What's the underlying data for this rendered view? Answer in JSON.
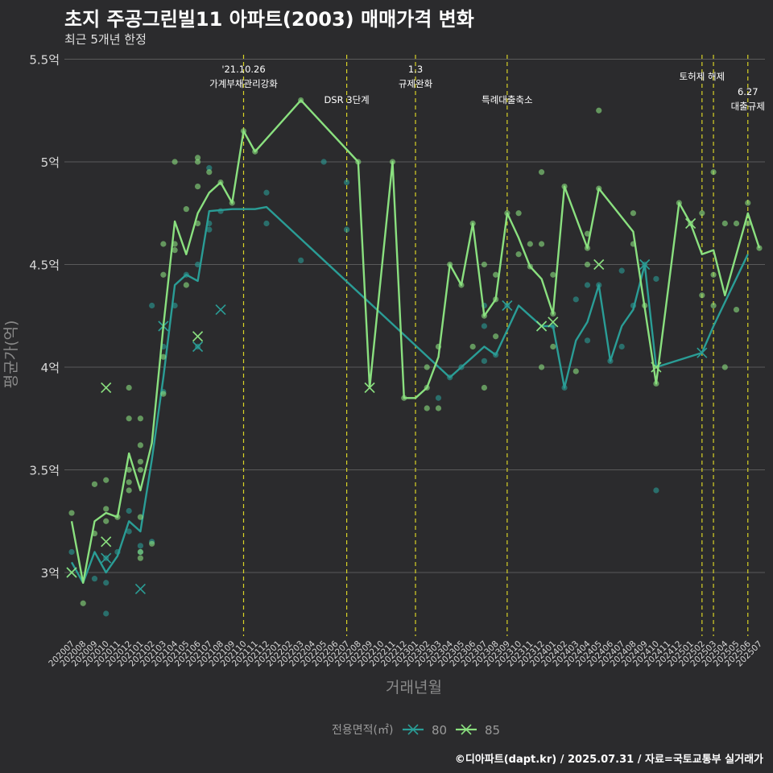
{
  "title": "초지 주공그린빌11 아파트(2003) 매매가격 변화",
  "subtitle": "최근 5개년 한정",
  "caption": "©디아파트(dapt.kr) / 2025.07.31 / 자료=국토교통부 실거래가",
  "colors": {
    "background": "#2b2b2d",
    "grid": "#5a5a5a",
    "series_80": "#2a9d96",
    "series_85": "#8ae07f",
    "event_line": "#d9d326"
  },
  "chart_data": {
    "type": "line",
    "xlabel": "거래년월",
    "ylabel": "평균가(억)",
    "ylim": [
      2.65,
      5.55
    ],
    "yticks": [
      3,
      3.5,
      4,
      4.5,
      5,
      5.5
    ],
    "ytick_labels": [
      "3억",
      "3.5억",
      "4억",
      "4.5억",
      "5억",
      "5.5억"
    ],
    "categories": [
      "202007",
      "202008",
      "202009",
      "202010",
      "202011",
      "202012",
      "202101",
      "202102",
      "202103",
      "202104",
      "202105",
      "202106",
      "202107",
      "202108",
      "202109",
      "202110",
      "202111",
      "202112",
      "202201",
      "202202",
      "202203",
      "202204",
      "202205",
      "202206",
      "202207",
      "202208",
      "202209",
      "202210",
      "202211",
      "202212",
      "202301",
      "202302",
      "202303",
      "202304",
      "202305",
      "202306",
      "202307",
      "202308",
      "202309",
      "202310",
      "202311",
      "202312",
      "202401",
      "202402",
      "202403",
      "202404",
      "202405",
      "202406",
      "202407",
      "202408",
      "202409",
      "202410",
      "202411",
      "202412",
      "202501",
      "202502",
      "202503",
      "202504",
      "202505",
      "202506",
      "202507"
    ],
    "legend": {
      "title": "전용면적(㎡)",
      "position": "bottom",
      "entries": [
        "80",
        "85"
      ]
    },
    "series": [
      {
        "name": "80",
        "color": "#2a9d96",
        "line": [
          [
            "202007",
            3.05
          ],
          [
            "202008",
            2.95
          ],
          [
            "202009",
            3.1
          ],
          [
            "202010",
            3.0
          ],
          [
            "202011",
            3.08
          ],
          [
            "202012",
            3.25
          ],
          [
            "202101",
            3.2
          ],
          [
            "202102",
            3.55
          ],
          [
            "202103",
            3.95
          ],
          [
            "202104",
            4.4
          ],
          [
            "202105",
            4.45
          ],
          [
            "202106",
            4.42
          ],
          [
            "202107",
            4.76
          ],
          [
            "202108",
            4.765
          ],
          [
            "202109",
            4.77
          ],
          [
            "202110",
            4.77
          ],
          [
            "202111",
            4.77
          ],
          [
            "202112",
            4.78
          ],
          [
            "202304",
            3.95
          ],
          [
            "202305",
            4.0
          ],
          [
            "202306",
            4.05
          ],
          [
            "202307",
            4.1
          ],
          [
            "202308",
            4.06
          ],
          [
            "202309",
            4.18
          ],
          [
            "202310",
            4.3
          ],
          [
            "202311",
            4.25
          ],
          [
            "202312",
            4.2
          ],
          [
            "202401",
            4.2
          ],
          [
            "202402",
            3.9
          ],
          [
            "202403",
            4.13
          ],
          [
            "202404",
            4.22
          ],
          [
            "202405",
            4.4
          ],
          [
            "202406",
            4.03
          ],
          [
            "202407",
            4.2
          ],
          [
            "202408",
            4.28
          ],
          [
            "202409",
            4.5
          ],
          [
            "202410",
            4.0
          ],
          [
            "202502",
            4.07
          ],
          [
            "202503",
            4.2
          ],
          [
            "202506",
            4.55
          ]
        ],
        "points": [
          [
            "202007",
            3.1
          ],
          [
            "202009",
            2.97
          ],
          [
            "202010",
            2.8
          ],
          [
            "202010",
            3.07
          ],
          [
            "202010",
            2.95
          ],
          [
            "202011",
            3.1
          ],
          [
            "202012",
            3.2
          ],
          [
            "202012",
            3.3
          ],
          [
            "202101",
            3.1
          ],
          [
            "202101",
            3.13
          ],
          [
            "202102",
            3.15
          ],
          [
            "202102",
            4.3
          ],
          [
            "202103",
            3.88
          ],
          [
            "202103",
            4.1
          ],
          [
            "202104",
            4.3
          ],
          [
            "202105",
            4.45
          ],
          [
            "202106",
            4.1
          ],
          [
            "202106",
            4.5
          ],
          [
            "202107",
            4.97
          ],
          [
            "202107",
            4.67
          ],
          [
            "202107",
            4.7
          ],
          [
            "202108",
            4.76
          ],
          [
            "202112",
            4.85
          ],
          [
            "202112",
            4.7
          ],
          [
            "202203",
            4.52
          ],
          [
            "202205",
            5.0
          ],
          [
            "202207",
            4.9
          ],
          [
            "202207",
            4.67
          ],
          [
            "202303",
            3.85
          ],
          [
            "202304",
            3.95
          ],
          [
            "202305",
            4.0
          ],
          [
            "202307",
            4.3
          ],
          [
            "202307",
            4.2
          ],
          [
            "202307",
            4.03
          ],
          [
            "202308",
            4.06
          ],
          [
            "202309",
            4.3
          ],
          [
            "202401",
            4.2
          ],
          [
            "202402",
            3.9
          ],
          [
            "202403",
            4.33
          ],
          [
            "202404",
            4.4
          ],
          [
            "202404",
            4.13
          ],
          [
            "202405",
            4.4
          ],
          [
            "202406",
            4.03
          ],
          [
            "202407",
            4.47
          ],
          [
            "202407",
            4.1
          ],
          [
            "202408",
            4.3
          ],
          [
            "202409",
            4.5
          ],
          [
            "202410",
            3.4
          ],
          [
            "202410",
            4.43
          ]
        ],
        "cross_points": [
          [
            "202007",
            3.0
          ],
          [
            "202010",
            3.07
          ],
          [
            "202101",
            2.92
          ],
          [
            "202103",
            4.2
          ],
          [
            "202106",
            4.1
          ],
          [
            "202108",
            4.28
          ],
          [
            "202309",
            4.3
          ],
          [
            "202312",
            4.2
          ],
          [
            "202409",
            4.5
          ],
          [
            "202502",
            4.07
          ]
        ]
      },
      {
        "name": "85",
        "color": "#8ae07f",
        "line": [
          [
            "202007",
            3.25
          ],
          [
            "202008",
            2.95
          ],
          [
            "202009",
            3.25
          ],
          [
            "202010",
            3.29
          ],
          [
            "202011",
            3.27
          ],
          [
            "202012",
            3.58
          ],
          [
            "202101",
            3.4
          ],
          [
            "202102",
            3.63
          ],
          [
            "202103",
            4.2
          ],
          [
            "202104",
            4.71
          ],
          [
            "202105",
            4.55
          ],
          [
            "202106",
            4.75
          ],
          [
            "202107",
            4.85
          ],
          [
            "202108",
            4.9
          ],
          [
            "202109",
            4.8
          ],
          [
            "202110",
            5.15
          ],
          [
            "202111",
            5.05
          ],
          [
            "202203",
            5.3
          ],
          [
            "202208",
            5.0
          ],
          [
            "202209",
            3.9
          ],
          [
            "202211",
            5.0
          ],
          [
            "202212",
            3.85
          ],
          [
            "202301",
            3.85
          ],
          [
            "202302",
            3.9
          ],
          [
            "202303",
            4.05
          ],
          [
            "202304",
            4.5
          ],
          [
            "202305",
            4.4
          ],
          [
            "202306",
            4.7
          ],
          [
            "202307",
            4.25
          ],
          [
            "202308",
            4.33
          ],
          [
            "202309",
            4.75
          ],
          [
            "202310",
            4.63
          ],
          [
            "202311",
            4.49
          ],
          [
            "202312",
            4.43
          ],
          [
            "202401",
            4.26
          ],
          [
            "202402",
            4.88
          ],
          [
            "202404",
            4.58
          ],
          [
            "202405",
            4.87
          ],
          [
            "202408",
            4.66
          ],
          [
            "202410",
            3.92
          ],
          [
            "202412",
            4.8
          ],
          [
            "202501",
            4.7
          ],
          [
            "202502",
            4.55
          ],
          [
            "202503",
            4.57
          ],
          [
            "202504",
            4.35
          ],
          [
            "202506",
            4.75
          ],
          [
            "202507",
            4.58
          ]
        ],
        "points": [
          [
            "202007",
            3.29
          ],
          [
            "202008",
            2.85
          ],
          [
            "202009",
            3.19
          ],
          [
            "202009",
            3.43
          ],
          [
            "202010",
            3.45
          ],
          [
            "202010",
            3.31
          ],
          [
            "202010",
            3.25
          ],
          [
            "202011",
            3.27
          ],
          [
            "202012",
            3.75
          ],
          [
            "202012",
            3.5
          ],
          [
            "202012",
            3.9
          ],
          [
            "202012",
            3.44
          ],
          [
            "202012",
            3.4
          ],
          [
            "202101",
            3.75
          ],
          [
            "202101",
            3.62
          ],
          [
            "202101",
            3.54
          ],
          [
            "202101",
            3.5
          ],
          [
            "202101",
            3.27
          ],
          [
            "202101",
            3.1
          ],
          [
            "202101",
            3.07
          ],
          [
            "202102",
            3.14
          ],
          [
            "202103",
            4.45
          ],
          [
            "202103",
            4.05
          ],
          [
            "202103",
            4.6
          ],
          [
            "202103",
            3.87
          ],
          [
            "202104",
            5.0
          ],
          [
            "202104",
            4.6
          ],
          [
            "202104",
            4.57
          ],
          [
            "202105",
            4.77
          ],
          [
            "202105",
            4.4
          ],
          [
            "202106",
            5.02
          ],
          [
            "202106",
            5.0
          ],
          [
            "202106",
            4.88
          ],
          [
            "202106",
            4.7
          ],
          [
            "202107",
            4.95
          ],
          [
            "202108",
            4.9
          ],
          [
            "202109",
            4.8
          ],
          [
            "202110",
            5.15
          ],
          [
            "202111",
            5.05
          ],
          [
            "202203",
            5.3
          ],
          [
            "202208",
            5.0
          ],
          [
            "202211",
            5.0
          ],
          [
            "202212",
            3.85
          ],
          [
            "202302",
            3.8
          ],
          [
            "202302",
            3.9
          ],
          [
            "202302",
            4.0
          ],
          [
            "202303",
            3.8
          ],
          [
            "202303",
            4.1
          ],
          [
            "202304",
            4.5
          ],
          [
            "202305",
            4.4
          ],
          [
            "202306",
            4.7
          ],
          [
            "202306",
            4.1
          ],
          [
            "202307",
            4.5
          ],
          [
            "202307",
            3.9
          ],
          [
            "202307",
            4.25
          ],
          [
            "202308",
            4.33
          ],
          [
            "202308",
            4.45
          ],
          [
            "202308",
            4.15
          ],
          [
            "202309",
            4.75
          ],
          [
            "202310",
            4.75
          ],
          [
            "202310",
            4.55
          ],
          [
            "202311",
            4.6
          ],
          [
            "202311",
            4.49
          ],
          [
            "202312",
            4.95
          ],
          [
            "202312",
            4.6
          ],
          [
            "202312",
            4.0
          ],
          [
            "202401",
            4.26
          ],
          [
            "202401",
            4.1
          ],
          [
            "202401",
            4.45
          ],
          [
            "202402",
            4.88
          ],
          [
            "202403",
            3.98
          ],
          [
            "202404",
            4.65
          ],
          [
            "202404",
            4.58
          ],
          [
            "202404",
            4.5
          ],
          [
            "202405",
            5.25
          ],
          [
            "202405",
            4.87
          ],
          [
            "202408",
            4.75
          ],
          [
            "202408",
            4.6
          ],
          [
            "202409",
            4.3
          ],
          [
            "202410",
            3.92
          ],
          [
            "202412",
            4.8
          ],
          [
            "202501",
            4.7
          ],
          [
            "202502",
            4.75
          ],
          [
            "202502",
            4.35
          ],
          [
            "202503",
            4.95
          ],
          [
            "202503",
            4.45
          ],
          [
            "202503",
            4.3
          ],
          [
            "202504",
            4.7
          ],
          [
            "202504",
            4.0
          ],
          [
            "202505",
            4.7
          ],
          [
            "202505",
            4.28
          ],
          [
            "202506",
            4.8
          ],
          [
            "202506",
            4.7
          ],
          [
            "202507",
            4.58
          ]
        ],
        "cross_points": [
          [
            "202007",
            3.0
          ],
          [
            "202010",
            3.9
          ],
          [
            "202010",
            3.15
          ],
          [
            "202106",
            4.15
          ],
          [
            "202209",
            3.9
          ],
          [
            "202312",
            4.2
          ],
          [
            "202401",
            4.22
          ],
          [
            "202405",
            4.5
          ],
          [
            "202410",
            4.0
          ],
          [
            "202501",
            4.7
          ]
        ]
      }
    ],
    "events": [
      {
        "x": "202110",
        "label_lines": [
          "'21.10.26",
          "가계부채관리강화"
        ],
        "label_y": [
          90,
          108
        ]
      },
      {
        "x": "202207",
        "label_lines": [
          "DSR 3단계"
        ],
        "label_y": [
          128
        ]
      },
      {
        "x": "202301",
        "label_lines": [
          "1.3",
          "규제완화"
        ],
        "label_y": [
          90,
          108
        ]
      },
      {
        "x": "202309",
        "label_lines": [
          "특례대출축소"
        ],
        "label_y": [
          128
        ]
      },
      {
        "x": "202502",
        "label_lines": [
          "토허제 해제"
        ],
        "label_y": [
          99
        ]
      },
      {
        "x": "202503",
        "label_lines": [],
        "label_y": []
      },
      {
        "x": "202506",
        "label_lines": [
          "6.27",
          "대출규제"
        ],
        "label_y": [
          118,
          136
        ]
      }
    ]
  }
}
